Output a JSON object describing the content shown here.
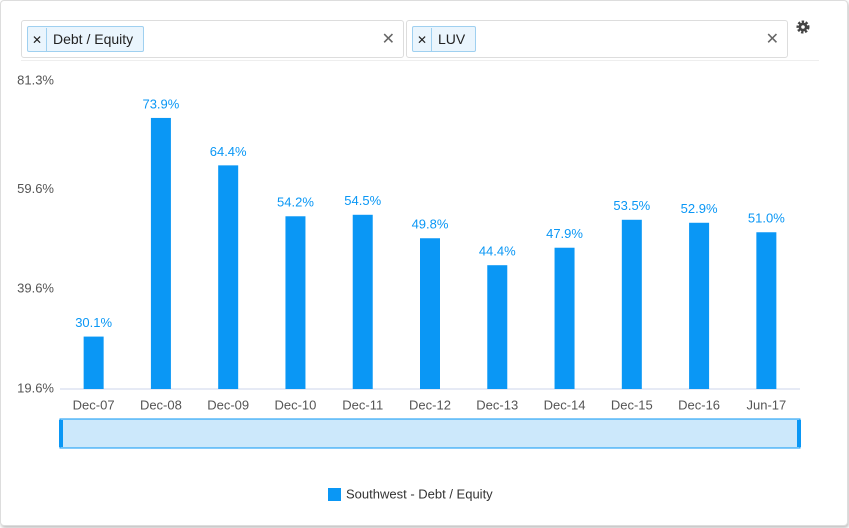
{
  "filters": [
    {
      "tag": "Debt / Equity"
    },
    {
      "tag": "LUV"
    }
  ],
  "chart_data": {
    "type": "bar",
    "categories": [
      "Dec-07",
      "Dec-08",
      "Dec-09",
      "Dec-10",
      "Dec-11",
      "Dec-12",
      "Dec-13",
      "Dec-14",
      "Dec-15",
      "Dec-16",
      "Jun-17"
    ],
    "series": [
      {
        "name": "Southwest - Debt / Equity",
        "color": "#0a97f5",
        "values": [
          30.1,
          73.9,
          64.4,
          54.2,
          54.5,
          49.8,
          44.4,
          47.9,
          53.5,
          52.9,
          51.0
        ],
        "value_labels": [
          "30.1%",
          "73.9%",
          "64.4%",
          "54.2%",
          "54.5%",
          "49.8%",
          "44.4%",
          "47.9%",
          "53.5%",
          "52.9%",
          "51.0%"
        ]
      }
    ],
    "ylim": [
      19.6,
      81.3
    ],
    "yticks": [
      {
        "value": 19.6,
        "label": "19.6%"
      },
      {
        "value": 39.6,
        "label": "39.6%"
      },
      {
        "value": 59.6,
        "label": "59.6%"
      },
      {
        "value": 81.3,
        "label": "81.3%"
      }
    ],
    "grid": false
  }
}
